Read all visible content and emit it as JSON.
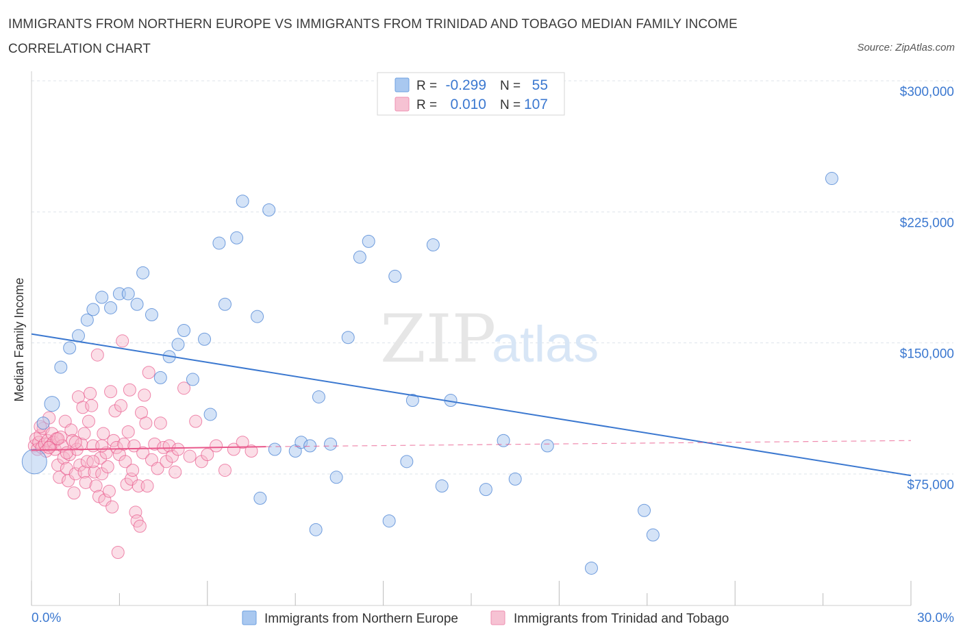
{
  "title": "IMMIGRANTS FROM NORTHERN EUROPE VS IMMIGRANTS FROM TRINIDAD AND TOBAGO MEDIAN FAMILY INCOME CORRELATION CHART",
  "source": "Source: ZipAtlas.com",
  "watermark": {
    "zip": "ZIP",
    "atlas": "atlas"
  },
  "colors": {
    "blue": "#3b78d0",
    "blue_fill": "#a9c8f0",
    "pink": "#e8578a",
    "pink_fill": "#f6b6ca",
    "grid": "#dde3ea",
    "accent_text": "#3b78d0"
  },
  "legend": {
    "rows": [
      {
        "r_label": "R =",
        "r_value": "-0.299",
        "n_label": "N =",
        "n_value": "55"
      },
      {
        "r_label": "R =",
        "r_value": "0.010",
        "n_label": "N =",
        "n_value": "107"
      }
    ]
  },
  "chart_data": {
    "type": "scatter",
    "ylabel": "Median Family Income",
    "xlim": [
      0,
      30
    ],
    "ylim": [
      0,
      300000
    ],
    "x_tick_labels": [
      "0.0%",
      "30.0%"
    ],
    "y_ticks": [
      75000,
      150000,
      225000,
      300000
    ],
    "y_tick_labels": [
      "$75,000",
      "$150,000",
      "$225,000",
      "$300,000"
    ],
    "grid": true,
    "legend_position": "top-center",
    "series": [
      {
        "name": "Immigrants from Northern Europe",
        "color": "#3b78d0",
        "trend": {
          "x": [
            0,
            30
          ],
          "y": [
            161000,
            80000
          ]
        },
        "points": [
          [
            0.1,
            88000
          ],
          [
            0.4,
            110000
          ],
          [
            0.7,
            121000
          ],
          [
            1.0,
            142000
          ],
          [
            1.3,
            153000
          ],
          [
            1.6,
            160000
          ],
          [
            1.9,
            169000
          ],
          [
            2.1,
            175000
          ],
          [
            2.4,
            182000
          ],
          [
            2.7,
            176000
          ],
          [
            3.0,
            184000
          ],
          [
            3.3,
            184000
          ],
          [
            3.6,
            178000
          ],
          [
            3.8,
            196000
          ],
          [
            4.1,
            172000
          ],
          [
            4.4,
            136000
          ],
          [
            4.7,
            148000
          ],
          [
            5.0,
            155000
          ],
          [
            5.2,
            163000
          ],
          [
            5.5,
            135000
          ],
          [
            5.9,
            158000
          ],
          [
            6.1,
            115000
          ],
          [
            6.4,
            213000
          ],
          [
            6.6,
            178000
          ],
          [
            7.0,
            216000
          ],
          [
            7.2,
            237000
          ],
          [
            7.7,
            171000
          ],
          [
            7.8,
            67000
          ],
          [
            8.1,
            232000
          ],
          [
            8.3,
            95000
          ],
          [
            9.0,
            94000
          ],
          [
            9.2,
            99000
          ],
          [
            9.5,
            97000
          ],
          [
            9.7,
            49000
          ],
          [
            9.8,
            125000
          ],
          [
            10.2,
            98000
          ],
          [
            10.4,
            79000
          ],
          [
            10.8,
            159000
          ],
          [
            11.2,
            205000
          ],
          [
            11.5,
            214000
          ],
          [
            12.2,
            54000
          ],
          [
            12.4,
            194000
          ],
          [
            12.8,
            88000
          ],
          [
            13.0,
            123000
          ],
          [
            13.7,
            212000
          ],
          [
            14.0,
            74000
          ],
          [
            14.3,
            123000
          ],
          [
            15.5,
            72000
          ],
          [
            16.1,
            100000
          ],
          [
            16.5,
            78000
          ],
          [
            17.6,
            97000
          ],
          [
            19.1,
            27000
          ],
          [
            20.9,
            60000
          ],
          [
            21.2,
            46000
          ],
          [
            27.3,
            250000
          ]
        ]
      },
      {
        "name": "Immigrants from Trinidad and Tobago",
        "color": "#e8578a",
        "trend": {
          "x": [
            0,
            8
          ],
          "y": [
            94500,
            96500
          ]
        },
        "trend_dashed": {
          "x": [
            8,
            30
          ],
          "y": [
            96500,
            100000
          ]
        },
        "points": [
          [
            0.1,
            97000
          ],
          [
            0.15,
            101000
          ],
          [
            0.2,
            95000
          ],
          [
            0.25,
            99000
          ],
          [
            0.3,
            103000
          ],
          [
            0.35,
            96000
          ],
          [
            0.4,
            107000
          ],
          [
            0.45,
            98000
          ],
          [
            0.5,
            94000
          ],
          [
            0.55,
            100000
          ],
          [
            0.6,
            113000
          ],
          [
            0.65,
            97000
          ],
          [
            0.7,
            104000
          ],
          [
            0.75,
            99000
          ],
          [
            0.8,
            95000
          ],
          [
            0.85,
            101000
          ],
          [
            0.9,
            86000
          ],
          [
            0.95,
            79000
          ],
          [
            1.0,
            102000
          ],
          [
            1.05,
            97000
          ],
          [
            1.1,
            90000
          ],
          [
            1.15,
            111000
          ],
          [
            1.2,
            84000
          ],
          [
            1.25,
            77000
          ],
          [
            1.3,
            92000
          ],
          [
            1.35,
            106000
          ],
          [
            1.4,
            100000
          ],
          [
            1.45,
            70000
          ],
          [
            1.5,
            81000
          ],
          [
            1.55,
            95000
          ],
          [
            1.6,
            125000
          ],
          [
            1.65,
            86000
          ],
          [
            1.7,
            98000
          ],
          [
            1.75,
            119000
          ],
          [
            1.8,
            82000
          ],
          [
            1.85,
            76000
          ],
          [
            1.9,
            88000
          ],
          [
            1.95,
            111000
          ],
          [
            2.0,
            127000
          ],
          [
            2.05,
            120000
          ],
          [
            2.1,
            97000
          ],
          [
            2.15,
            82000
          ],
          [
            2.2,
            74000
          ],
          [
            2.25,
            149000
          ],
          [
            2.3,
            68000
          ],
          [
            2.35,
            90000
          ],
          [
            2.4,
            81000
          ],
          [
            2.45,
            104000
          ],
          [
            2.5,
            66000
          ],
          [
            2.55,
            93000
          ],
          [
            2.6,
            85000
          ],
          [
            2.65,
            71000
          ],
          [
            2.7,
            128000
          ],
          [
            2.75,
            62000
          ],
          [
            2.8,
            100000
          ],
          [
            2.85,
            117000
          ],
          [
            2.9,
            96000
          ],
          [
            2.95,
            36000
          ],
          [
            3.0,
            92000
          ],
          [
            3.05,
            120000
          ],
          [
            3.1,
            157000
          ],
          [
            3.15,
            98000
          ],
          [
            3.2,
            88000
          ],
          [
            3.25,
            75000
          ],
          [
            3.3,
            105000
          ],
          [
            3.35,
            129000
          ],
          [
            3.4,
            78000
          ],
          [
            3.45,
            83000
          ],
          [
            3.5,
            97000
          ],
          [
            3.55,
            59000
          ],
          [
            3.6,
            54000
          ],
          [
            3.65,
            74000
          ],
          [
            3.7,
            51000
          ],
          [
            3.75,
            116000
          ],
          [
            3.8,
            93000
          ],
          [
            3.85,
            126000
          ],
          [
            3.9,
            110000
          ],
          [
            3.95,
            74000
          ],
          [
            4.0,
            139000
          ],
          [
            4.1,
            89000
          ],
          [
            4.2,
            98000
          ],
          [
            4.3,
            84000
          ],
          [
            4.4,
            110000
          ],
          [
            4.5,
            96000
          ],
          [
            4.6,
            88000
          ],
          [
            4.7,
            97000
          ],
          [
            4.8,
            91000
          ],
          [
            4.9,
            82000
          ],
          [
            5.0,
            95000
          ],
          [
            5.2,
            130000
          ],
          [
            5.4,
            91000
          ],
          [
            5.6,
            111000
          ],
          [
            5.8,
            88000
          ],
          [
            6.0,
            92000
          ],
          [
            6.3,
            97000
          ],
          [
            6.6,
            83000
          ],
          [
            6.9,
            95000
          ],
          [
            7.2,
            99000
          ],
          [
            7.5,
            94000
          ],
          [
            0.3,
            108000
          ],
          [
            0.6,
            96000
          ],
          [
            0.9,
            101000
          ],
          [
            1.2,
            93000
          ],
          [
            1.5,
            99000
          ],
          [
            1.8,
            104000
          ],
          [
            2.1,
            88000
          ],
          [
            2.4,
            97000
          ]
        ]
      }
    ]
  }
}
